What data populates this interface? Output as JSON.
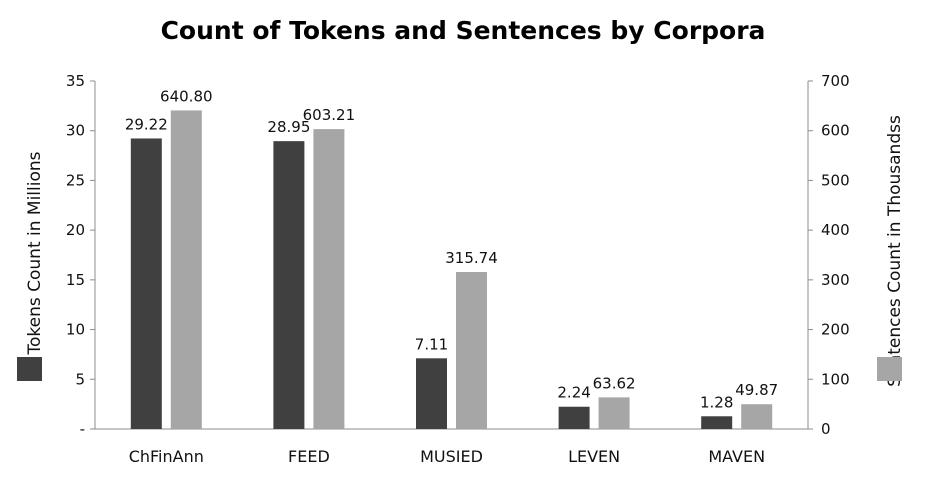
{
  "chart_data": {
    "type": "bar",
    "title": "Count of Tokens and Sentences by Corpora",
    "categories": [
      "ChFinAnn",
      "FEED",
      "MUSIED",
      "LEVEN",
      "MAVEN"
    ],
    "series": [
      {
        "name": "Tokens Count in Millions",
        "axis": "left",
        "color": "#404040",
        "values": [
          29.22,
          28.95,
          7.11,
          2.24,
          1.28
        ],
        "labels": [
          "29.22",
          "28.95",
          "7.11",
          "2.24",
          "1.28"
        ]
      },
      {
        "name": "Sentences Count in Thousandss",
        "axis": "right",
        "color": "#a6a6a6",
        "values": [
          640.8,
          603.21,
          315.74,
          63.62,
          49.87
        ],
        "labels": [
          "640.80",
          "603.21",
          "315.74",
          "63.62",
          "49.87"
        ]
      }
    ],
    "y_left": {
      "label": "Tokens Count in Millions",
      "lim": [
        0,
        35
      ],
      "ticks": [
        0,
        5,
        10,
        15,
        20,
        25,
        30,
        35
      ],
      "tick_labels": [
        "-",
        "5",
        "10",
        "15",
        "20",
        "25",
        "30",
        "35"
      ]
    },
    "y_right": {
      "label": "Sentences Count in Thousandss",
      "lim": [
        0,
        700
      ],
      "ticks": [
        0,
        100,
        200,
        300,
        400,
        500,
        600,
        700
      ],
      "tick_labels": [
        "0",
        "100",
        "200",
        "300",
        "400",
        "500",
        "600",
        "700"
      ]
    },
    "grid": false,
    "legend": "beside axis labels"
  }
}
